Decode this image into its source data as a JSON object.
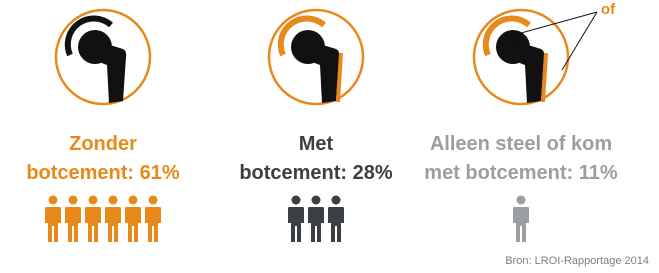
{
  "panels": [
    {
      "label_lines": [
        "Zonder",
        "botcement: 61%"
      ],
      "color": "#e8891c",
      "icons": 6
    },
    {
      "label_lines": [
        "Met",
        "botcement: 28%"
      ],
      "color": "#3b4045",
      "icons": 3
    },
    {
      "label_lines": [
        "Alleen steel of kom",
        "met botcement: 11%"
      ],
      "color": "#9b9fa2",
      "icons": 1
    }
  ],
  "annotation": "of",
  "source": "Bron: LROI-Rapportage 2014"
}
